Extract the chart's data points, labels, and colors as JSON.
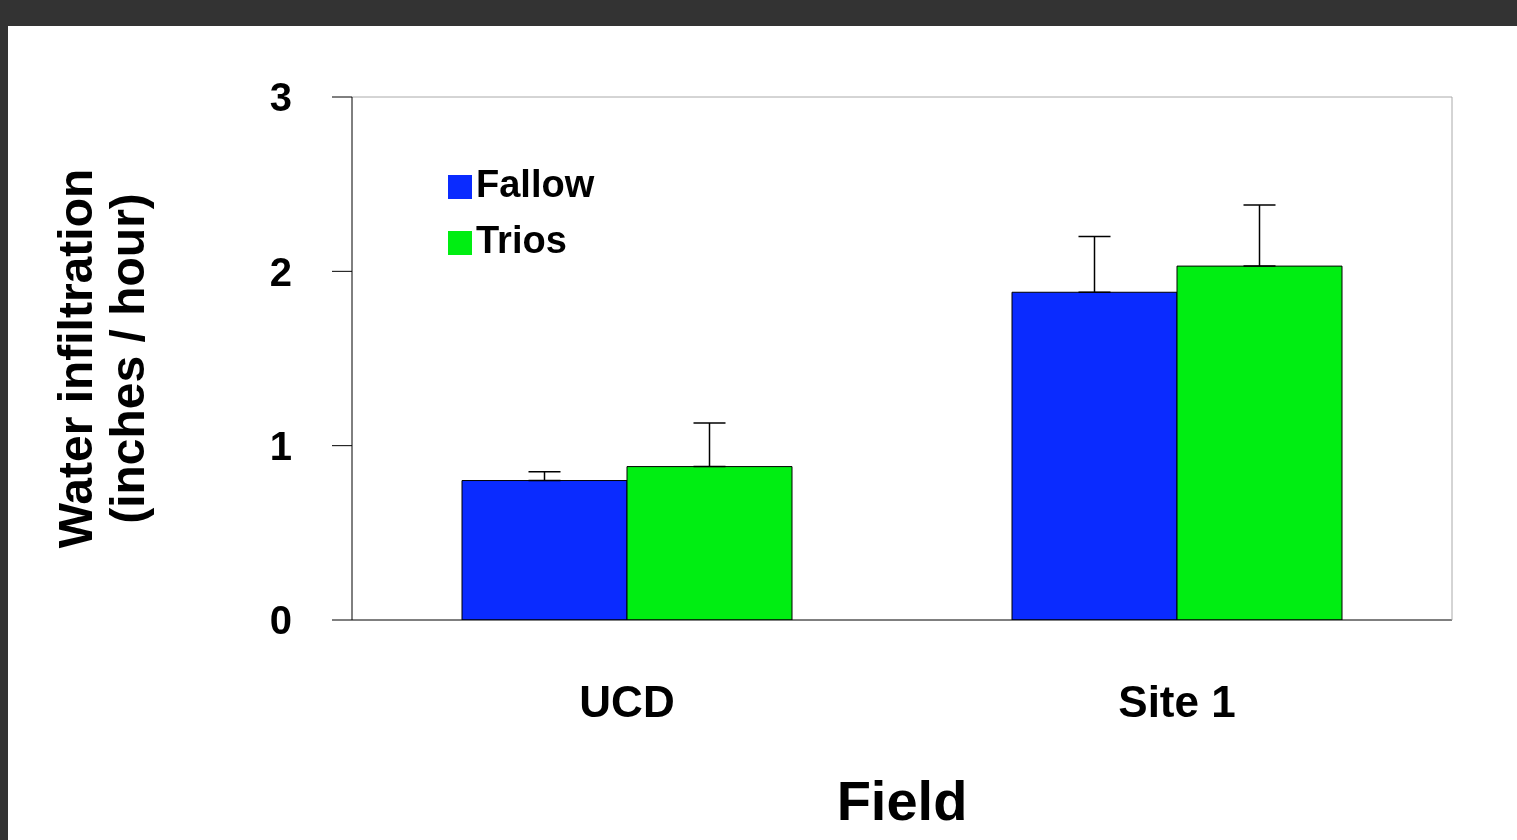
{
  "chart_data": {
    "type": "bar",
    "xlabel": "Field",
    "ylabel": "Water infiltration\n(inches / hour)",
    "categories": [
      "UCD",
      "Site 1"
    ],
    "series": [
      {
        "name": "Fallow",
        "color": "#0a2bff",
        "values": [
          0.8,
          1.88
        ],
        "errors": [
          [
            0.8,
            0.85
          ],
          [
            1.88,
            2.2
          ]
        ]
      },
      {
        "name": "Trios",
        "color": "#00ee12",
        "values": [
          0.88,
          2.03
        ],
        "errors": [
          [
            0.88,
            1.13
          ],
          [
            2.03,
            2.38
          ]
        ]
      }
    ],
    "ylim": [
      0,
      3
    ],
    "yticks": [
      0,
      1,
      2,
      3
    ],
    "grid": false,
    "legend": "top left"
  }
}
